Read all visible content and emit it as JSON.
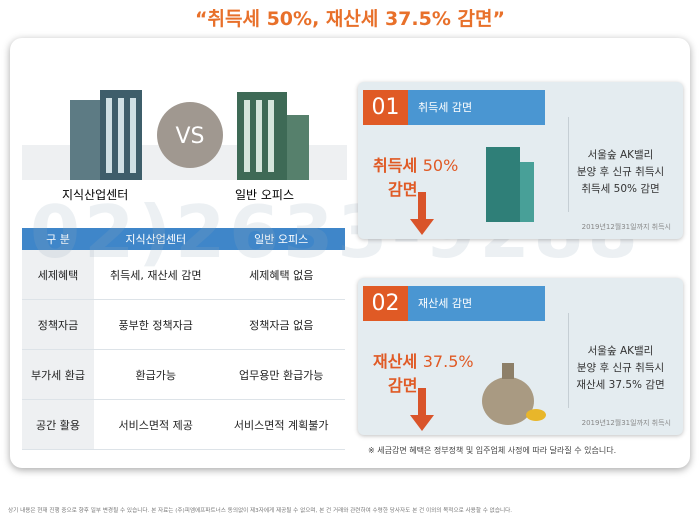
{
  "title": "“취득세 50%, 재산세 37.5% 감면”",
  "compare": {
    "left": "지식산업센터",
    "vs": "VS",
    "right": "일반 오피스"
  },
  "table": {
    "header": [
      "구 분",
      "지식산업센터",
      "일반 오피스"
    ],
    "rows": [
      [
        "세제혜택",
        "취득세, 재산세 감면",
        "세제혜택 없음"
      ],
      [
        "정책자금",
        "풍부한 정책자금",
        "정책자금 없음"
      ],
      [
        "부가세 환급",
        "환급가능",
        "업무용만 환급가능"
      ],
      [
        "공간 활용",
        "서비스면적 제공",
        "서비스면적 계획불가"
      ]
    ]
  },
  "cards": [
    {
      "number": "01",
      "title": "취득세 감면",
      "tax": "취득세",
      "rate": "50%",
      "action": "감면",
      "side": [
        "서울숲 AK밸리",
        "분양 후 신규 취득시",
        "취득세 50% 감면"
      ],
      "date": "2019년12월31일까지 취득시"
    },
    {
      "number": "02",
      "title": "재산세 감면",
      "tax": "재산세",
      "rate": "37.5%",
      "action": "감면",
      "side": [
        "서울숲 AK밸리",
        "분양 후 신규 취득시",
        "재산세 37.5% 감면"
      ],
      "date": "2019년12월31일까지 취득시"
    }
  ],
  "watermark": "02)2633-9288",
  "note": "※ 세금감면 혜택은 정부정책 및 입주업체 사정에 따라 달라질 수 있습니다.",
  "footer": "상기 내용은 현재 진행 중으로 향후 일부 변경될 수 있습니다. 본 자료는 (주)피엠에프파트너스 동의없이 제3자에게 제공될 수 없으며, 본 건 거래와 관련하여 수령한 당사자도 본 건 이외의 목적으로 사용할 수 없습니다."
}
